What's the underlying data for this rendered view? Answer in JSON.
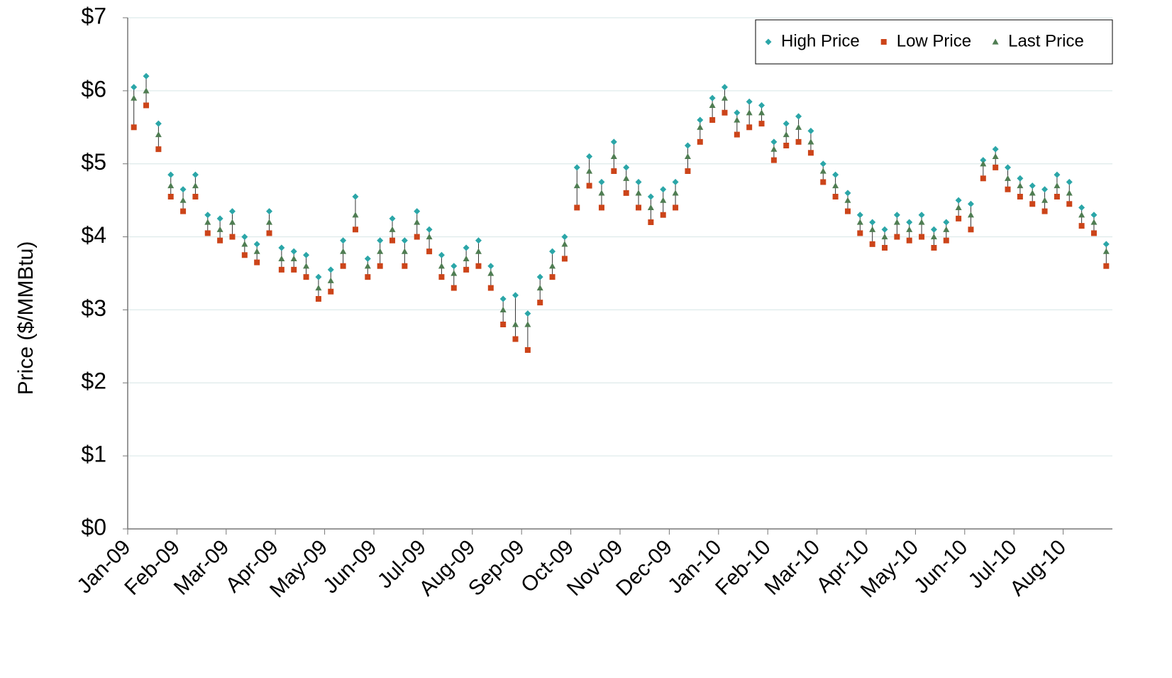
{
  "chart_data": {
    "type": "hlc",
    "y_label": "Price ($/MMBtu)",
    "categories": [
      "Jan-09",
      null,
      null,
      null,
      "Feb-09",
      null,
      null,
      null,
      "Mar-09",
      null,
      null,
      null,
      "Apr-09",
      null,
      null,
      null,
      "May-09",
      null,
      null,
      null,
      "Jun-09",
      null,
      null,
      null,
      "Jul-09",
      null,
      null,
      null,
      "Aug-09",
      null,
      null,
      null,
      "Sep-09",
      null,
      null,
      null,
      "Oct-09",
      null,
      null,
      null,
      "Nov-09",
      null,
      null,
      null,
      "Dec-09",
      null,
      null,
      null,
      "Jan-10",
      null,
      null,
      null,
      "Feb-10",
      null,
      null,
      null,
      "Mar-10",
      null,
      null,
      null,
      "Apr-10",
      null,
      null,
      null,
      "May-10",
      null,
      null,
      null,
      "Jun-10",
      null,
      null,
      null,
      "Jul-10",
      null,
      null,
      null,
      "Aug-10",
      null,
      null,
      null
    ],
    "series": [
      {
        "name": "High Price",
        "color": "#2ba6a8",
        "marker": "diamond",
        "values": [
          6.05,
          6.2,
          5.55,
          4.85,
          4.65,
          4.85,
          4.3,
          4.25,
          4.35,
          4.0,
          3.9,
          4.35,
          3.85,
          3.8,
          3.75,
          3.45,
          3.55,
          3.95,
          4.55,
          3.7,
          3.95,
          4.25,
          3.95,
          4.35,
          4.1,
          3.75,
          3.6,
          3.85,
          3.95,
          3.6,
          3.15,
          3.2,
          2.95,
          3.45,
          3.8,
          4.0,
          4.95,
          5.1,
          4.75,
          5.3,
          4.95,
          4.75,
          4.55,
          4.65,
          4.75,
          5.25,
          5.6,
          5.9,
          6.05,
          5.7,
          5.85,
          5.8,
          5.3,
          5.55,
          5.65,
          5.45,
          5.0,
          4.85,
          4.6,
          4.3,
          4.2,
          4.1,
          4.3,
          4.2,
          4.3,
          4.1,
          4.2,
          4.5,
          4.45,
          5.05,
          5.2,
          4.95,
          4.8,
          4.7,
          4.65,
          4.85,
          4.75,
          4.4,
          4.3,
          3.9
        ]
      },
      {
        "name": "Low Price",
        "color": "#cc4419",
        "marker": "square",
        "values": [
          5.5,
          5.8,
          5.2,
          4.55,
          4.35,
          4.55,
          4.05,
          3.95,
          4.0,
          3.75,
          3.65,
          4.05,
          3.55,
          3.55,
          3.45,
          3.15,
          3.25,
          3.6,
          4.1,
          3.45,
          3.6,
          3.95,
          3.6,
          4.0,
          3.8,
          3.45,
          3.3,
          3.55,
          3.6,
          3.3,
          2.8,
          2.6,
          2.45,
          3.1,
          3.45,
          3.7,
          4.4,
          4.7,
          4.4,
          4.9,
          4.6,
          4.4,
          4.2,
          4.3,
          4.4,
          4.9,
          5.3,
          5.6,
          5.7,
          5.4,
          5.5,
          5.55,
          5.05,
          5.25,
          5.3,
          5.15,
          4.75,
          4.55,
          4.35,
          4.05,
          3.9,
          3.85,
          4.0,
          3.95,
          4.0,
          3.85,
          3.95,
          4.25,
          4.1,
          4.8,
          4.95,
          4.65,
          4.55,
          4.45,
          4.35,
          4.55,
          4.45,
          4.15,
          4.05,
          3.6
        ]
      },
      {
        "name": "Last Price",
        "color": "#4f7d52",
        "marker": "triangle",
        "values": [
          5.9,
          6.0,
          5.4,
          4.7,
          4.5,
          4.7,
          4.2,
          4.1,
          4.2,
          3.9,
          3.8,
          4.2,
          3.7,
          3.7,
          3.6,
          3.3,
          3.4,
          3.8,
          4.3,
          3.6,
          3.8,
          4.1,
          3.8,
          4.2,
          4.0,
          3.6,
          3.5,
          3.7,
          3.8,
          3.5,
          3.0,
          2.8,
          2.8,
          3.3,
          3.6,
          3.9,
          4.7,
          4.9,
          4.6,
          5.1,
          4.8,
          4.6,
          4.4,
          4.5,
          4.6,
          5.1,
          5.5,
          5.8,
          5.9,
          5.6,
          5.7,
          5.7,
          5.2,
          5.4,
          5.5,
          5.3,
          4.9,
          4.7,
          4.5,
          4.2,
          4.1,
          4.0,
          4.2,
          4.1,
          4.2,
          4.0,
          4.1,
          4.4,
          4.3,
          5.0,
          5.1,
          4.8,
          4.7,
          4.6,
          4.5,
          4.7,
          4.6,
          4.3,
          4.2,
          3.8
        ]
      }
    ],
    "ylim": [
      0,
      7
    ],
    "yticks": [
      {
        "value": 0,
        "label": "$0"
      },
      {
        "value": 1,
        "label": "$1"
      },
      {
        "value": 2,
        "label": "$2"
      },
      {
        "value": 3,
        "label": "$3"
      },
      {
        "value": 4,
        "label": "$4"
      },
      {
        "value": 5,
        "label": "$5"
      },
      {
        "value": 6,
        "label": "$6"
      },
      {
        "value": 7,
        "label": "$7"
      }
    ],
    "grid": true,
    "legend": "top-right"
  }
}
